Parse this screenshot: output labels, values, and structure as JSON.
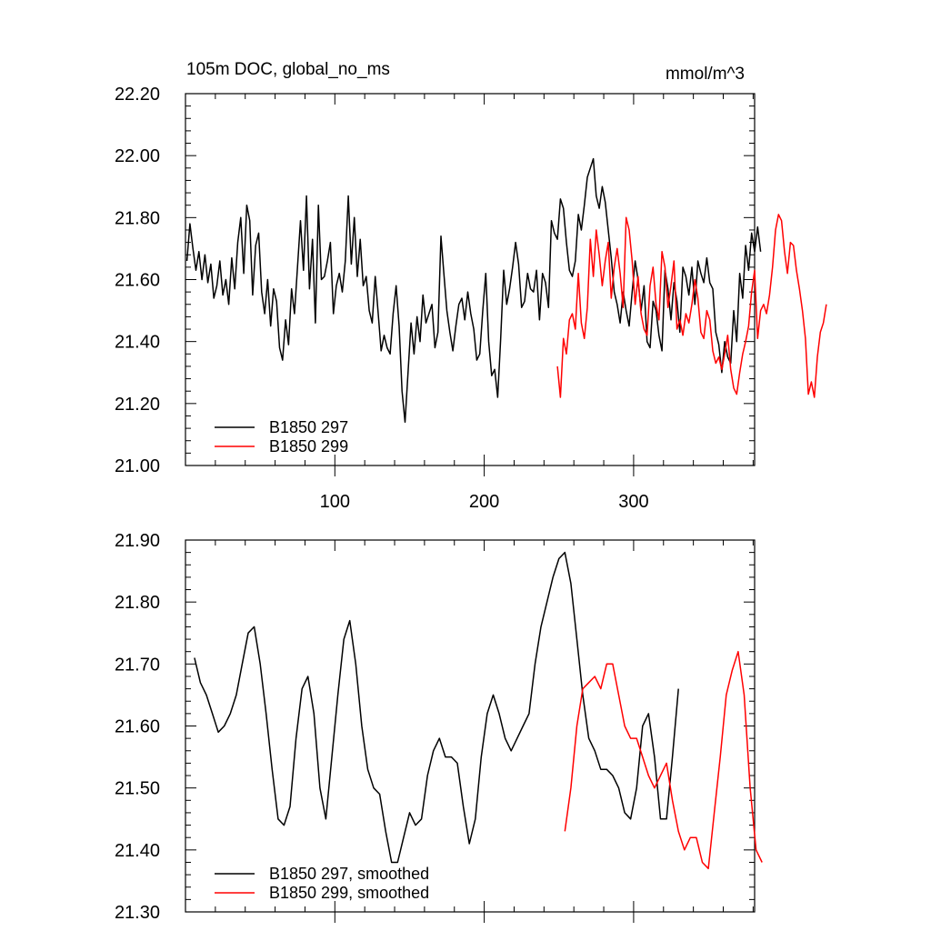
{
  "title_left": "105m DOC, global_no_ms",
  "title_right": "mmol/m^3",
  "colors": {
    "run297": "#000000",
    "run299": "#ff0000"
  },
  "chart_data": [
    {
      "type": "line",
      "xlim": [
        0,
        381
      ],
      "ylim": [
        21.0,
        22.2
      ],
      "x_ticks": [
        100,
        200,
        300
      ],
      "x_tick_labels": [
        "100",
        "200",
        "300"
      ],
      "y_ticks": [
        21.0,
        21.2,
        21.4,
        21.6,
        21.8,
        22.0,
        22.2
      ],
      "y_tick_labels": [
        "21.00",
        "21.20",
        "21.40",
        "21.60",
        "21.80",
        "22.00",
        "22.20"
      ],
      "legend_position": "bottom-left",
      "series": [
        {
          "name": "B1850 297",
          "color": "#000000",
          "x_start": 1,
          "x_step": 2,
          "values": [
            21.66,
            21.78,
            21.7,
            21.63,
            21.69,
            21.6,
            21.68,
            21.59,
            21.65,
            21.54,
            21.58,
            21.66,
            21.55,
            21.6,
            21.52,
            21.67,
            21.57,
            21.72,
            21.8,
            21.62,
            21.84,
            21.79,
            21.55,
            21.71,
            21.75,
            21.56,
            21.49,
            21.6,
            21.45,
            21.57,
            21.53,
            21.38,
            21.34,
            21.47,
            21.39,
            21.57,
            21.49,
            21.64,
            21.79,
            21.63,
            21.87,
            21.57,
            21.73,
            21.46,
            21.84,
            21.6,
            21.61,
            21.66,
            21.72,
            21.49,
            21.58,
            21.62,
            21.56,
            21.66,
            21.87,
            21.65,
            21.8,
            21.61,
            21.73,
            21.58,
            21.61,
            21.5,
            21.46,
            21.61,
            21.49,
            21.37,
            21.42,
            21.38,
            21.36,
            21.49,
            21.58,
            21.45,
            21.24,
            21.14,
            21.3,
            21.46,
            21.36,
            21.48,
            21.4,
            21.55,
            21.46,
            21.49,
            21.52,
            21.38,
            21.43,
            21.74,
            21.62,
            21.5,
            21.43,
            21.37,
            21.45,
            21.52,
            21.54,
            21.47,
            21.56,
            21.49,
            21.44,
            21.34,
            21.36,
            21.5,
            21.62,
            21.4,
            21.29,
            21.31,
            21.22,
            21.41,
            21.63,
            21.52,
            21.57,
            21.64,
            21.72,
            21.65,
            21.51,
            21.53,
            21.62,
            21.57,
            21.56,
            21.63,
            21.47,
            21.62,
            21.59,
            21.51,
            21.79,
            21.75,
            21.73,
            21.86,
            21.83,
            21.72,
            21.63,
            21.61,
            21.66,
            21.81,
            21.76,
            21.84,
            21.93,
            21.96,
            21.99,
            21.87,
            21.83,
            21.9,
            21.85,
            21.76,
            21.67,
            21.56,
            21.52,
            21.46,
            21.56,
            21.5,
            21.45,
            21.56,
            21.66,
            21.6,
            21.5,
            21.58,
            21.4,
            21.38,
            21.53,
            21.5,
            21.42,
            21.37,
            21.63,
            21.57,
            21.47,
            21.59,
            21.53,
            21.43,
            21.64,
            21.61,
            21.55,
            21.64,
            21.52,
            21.66,
            21.62,
            21.59,
            21.67,
            21.59,
            21.57,
            21.43,
            21.39,
            21.3,
            21.4,
            21.35,
            21.33,
            21.5,
            21.4,
            21.62,
            21.54,
            21.71,
            21.63,
            21.75,
            21.69,
            21.77,
            21.69
          ]
        },
        {
          "name": "B1850 299",
          "color": "#ff0000",
          "x_start": 249,
          "x_step": 2,
          "values": [
            21.32,
            21.22,
            21.41,
            21.36,
            21.47,
            21.49,
            21.44,
            21.62,
            21.46,
            21.41,
            21.51,
            21.73,
            21.61,
            21.76,
            21.68,
            21.58,
            21.66,
            21.72,
            21.54,
            21.64,
            21.7,
            21.62,
            21.51,
            21.8,
            21.76,
            21.66,
            21.52,
            21.61,
            21.49,
            21.44,
            21.42,
            21.58,
            21.64,
            21.52,
            21.47,
            21.69,
            21.64,
            21.51,
            21.58,
            21.66,
            21.44,
            21.47,
            21.42,
            21.49,
            21.46,
            21.52,
            21.6,
            21.54,
            21.43,
            21.41,
            21.5,
            21.47,
            21.37,
            21.33,
            21.35,
            21.31,
            21.36,
            21.42,
            21.31,
            21.25,
            21.23,
            21.3,
            21.36,
            21.4,
            21.45,
            21.56,
            21.63,
            21.41,
            21.5,
            21.52,
            21.49,
            21.55,
            21.64,
            21.76,
            21.81,
            21.79,
            21.69,
            21.62,
            21.72,
            21.71,
            21.63,
            21.57,
            21.5,
            21.41,
            21.23,
            21.27,
            21.22,
            21.35,
            21.43,
            21.46,
            21.52
          ]
        }
      ]
    },
    {
      "type": "line",
      "xlim": [
        0,
        381
      ],
      "ylim": [
        21.3,
        21.9
      ],
      "x_ticks": [
        100,
        200,
        300
      ],
      "y_ticks": [
        21.3,
        21.4,
        21.5,
        21.6,
        21.7,
        21.8,
        21.9
      ],
      "y_tick_labels": [
        "21.30",
        "21.40",
        "21.50",
        "21.60",
        "21.70",
        "21.80",
        "21.90"
      ],
      "legend_position": "bottom-left",
      "series": [
        {
          "name": "B1850 297, smoothed",
          "color": "#000000",
          "x_start": 6,
          "x_step": 4,
          "values": [
            21.71,
            21.67,
            21.65,
            21.62,
            21.59,
            21.6,
            21.62,
            21.65,
            21.7,
            21.75,
            21.76,
            21.7,
            21.62,
            21.53,
            21.45,
            21.44,
            21.47,
            21.58,
            21.66,
            21.68,
            21.62,
            21.5,
            21.45,
            21.55,
            21.65,
            21.74,
            21.77,
            21.7,
            21.6,
            21.53,
            21.5,
            21.49,
            21.43,
            21.38,
            21.38,
            21.42,
            21.46,
            21.44,
            21.45,
            21.52,
            21.56,
            21.58,
            21.55,
            21.55,
            21.54,
            21.47,
            21.41,
            21.45,
            21.55,
            21.62,
            21.65,
            21.62,
            21.58,
            21.56,
            21.58,
            21.6,
            21.62,
            21.7,
            21.76,
            21.8,
            21.84,
            21.87,
            21.88,
            21.83,
            21.74,
            21.65,
            21.58,
            21.56,
            21.53,
            21.53,
            21.52,
            21.5,
            21.46,
            21.45,
            21.5,
            21.6,
            21.62,
            21.55,
            21.45,
            21.45,
            21.55,
            21.66
          ]
        },
        {
          "name": "B1850 299, smoothed",
          "color": "#ff0000",
          "x_start": 254,
          "x_step": 4,
          "values": [
            21.43,
            21.5,
            21.6,
            21.66,
            21.67,
            21.68,
            21.66,
            21.7,
            21.7,
            21.65,
            21.6,
            21.58,
            21.58,
            21.55,
            21.52,
            21.5,
            21.52,
            21.54,
            21.48,
            21.43,
            21.4,
            21.42,
            21.42,
            21.38,
            21.37,
            21.46,
            21.55,
            21.65,
            21.69,
            21.72,
            21.65,
            21.5,
            21.4,
            21.38
          ]
        }
      ]
    }
  ]
}
